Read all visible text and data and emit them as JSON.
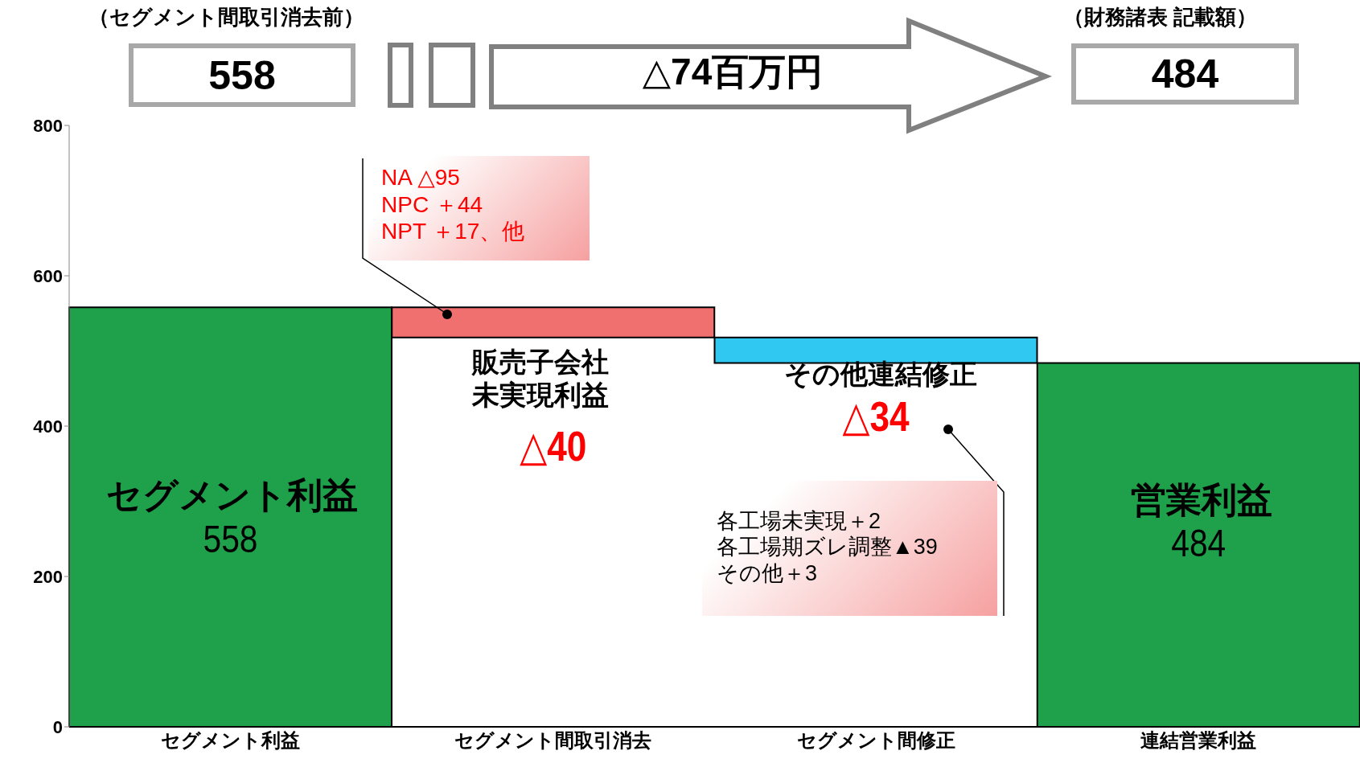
{
  "chart_data": {
    "type": "bar",
    "categories": [
      "セグメント利益",
      "セグメント間取引消去",
      "セグメント間修正",
      "連結営業利益"
    ],
    "values": [
      558,
      -40,
      -34,
      484
    ],
    "base": [
      0,
      558,
      518,
      0
    ],
    "colors": [
      "#1fa04a",
      "#f07070",
      "#30c8f0",
      "#1fa04a"
    ],
    "value_labels": [
      "558",
      "△40",
      "△34",
      "484"
    ],
    "ylim": [
      0,
      800
    ],
    "yticks": [
      0,
      200,
      400,
      600,
      800
    ],
    "grid": false,
    "legend": false,
    "annotations": [
      "（セグメント間取引消去前）",
      "558",
      "△74百万円",
      "（財務諸表 記載額）",
      "484",
      "NA  △95\nNPC  ＋44\nNPT  ＋17、他",
      "各工場未実現＋2\n各工場期ズレ調整▲39\nその他＋3",
      "セグメント利益",
      "販売子会社未実現利益",
      "その他連結修正",
      "営業利益"
    ]
  }
}
